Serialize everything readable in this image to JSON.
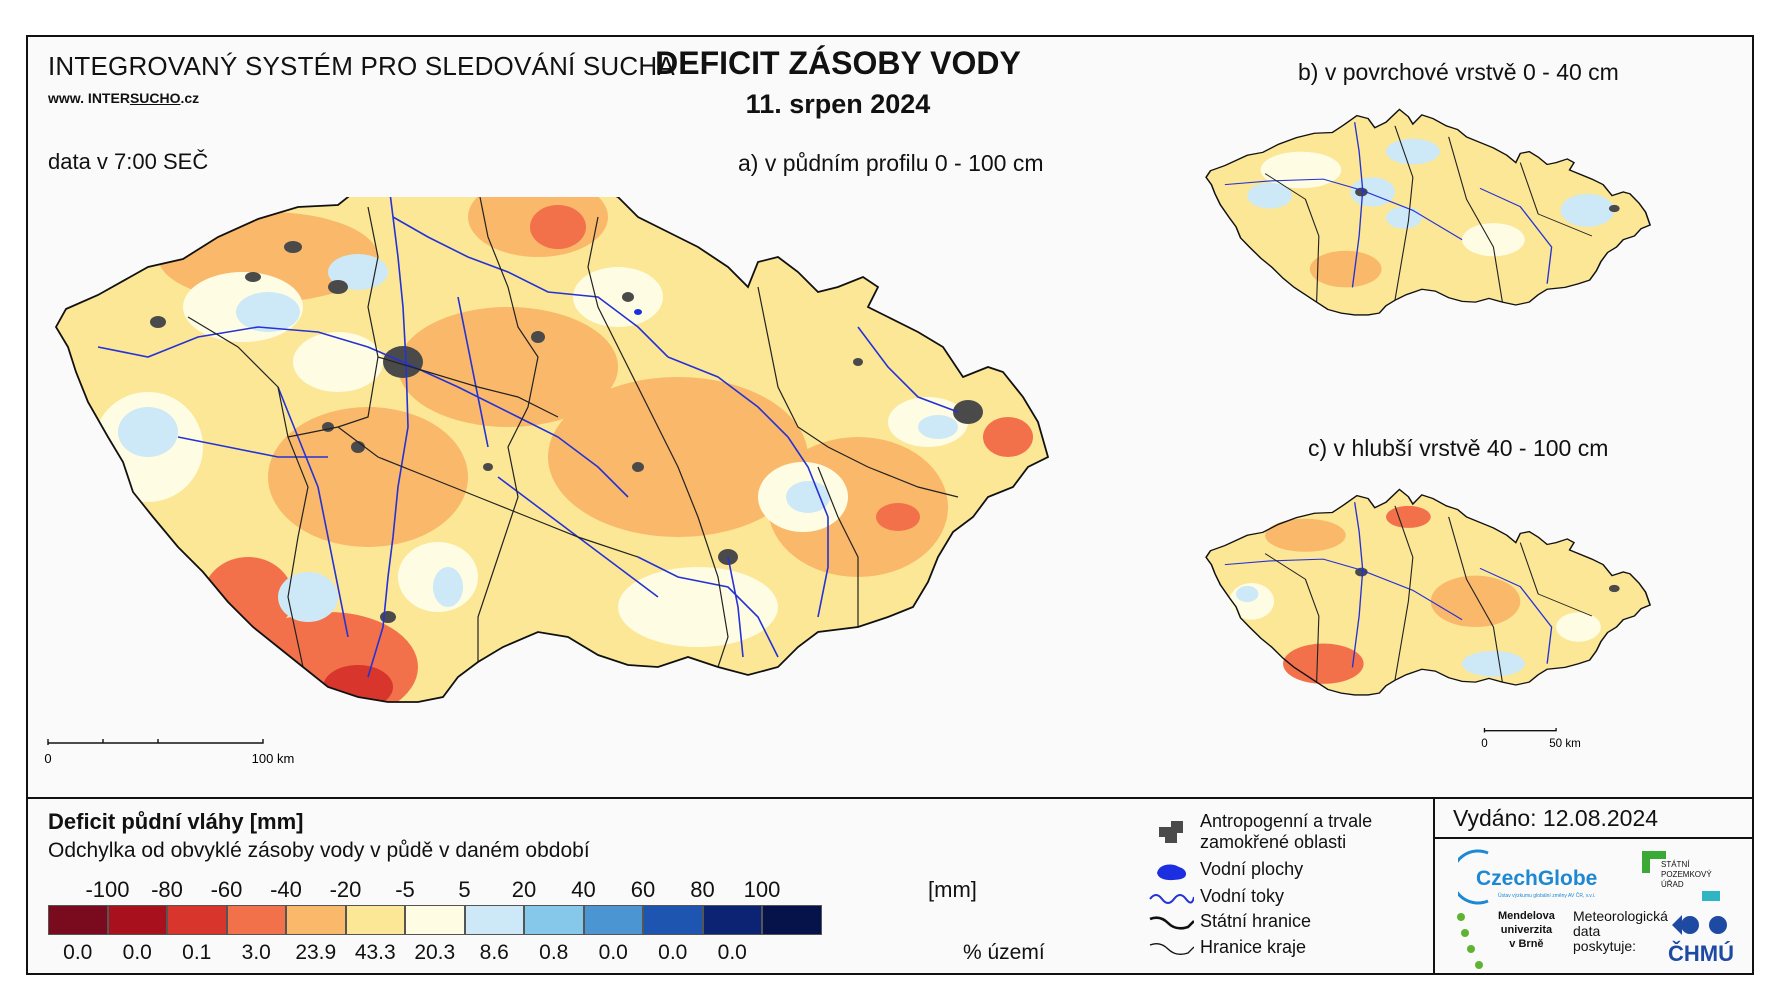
{
  "header": {
    "system_title": "INTEGROVANÝ SYSTÉM PRO SLEDOVÁNÍ SUCHA",
    "website_prefix": "www. INTER",
    "website_brand": "SUCHO",
    "website_suffix": ".cz",
    "data_time": "data v 7:00 SEČ",
    "main_title": "DEFICIT ZÁSOBY VODY",
    "main_date": "11. srpen 2024"
  },
  "maps": {
    "main_label": "a) v půdním profilu 0 - 100 cm",
    "b_label": "b) v povrchové vrstvě 0 - 40 cm",
    "c_label": "c) v hlubší vrstvě 40 - 100 cm",
    "main_scale_start": "0",
    "main_scale_end": "100 km",
    "small_scale_start": "0",
    "small_scale_end": "50 km"
  },
  "legend": {
    "title": "Deficit půdní vláhy  [mm]",
    "subtitle": "Odchylka od obvyklé zásoby vody v půdě v daném období",
    "ticks": [
      "-100",
      "-80",
      "-60",
      "-40",
      "-20",
      "-5",
      "5",
      "20",
      "40",
      "60",
      "80",
      "100"
    ],
    "unit_mm": "[mm]",
    "classes": [
      {
        "color": "#7a0a1e",
        "pct": "0.0"
      },
      {
        "color": "#a8101e",
        "pct": "0.0"
      },
      {
        "color": "#d8362c",
        "pct": "0.1"
      },
      {
        "color": "#f2714a",
        "pct": "3.0"
      },
      {
        "color": "#f9b86a",
        "pct": "23.9"
      },
      {
        "color": "#fbe796",
        "pct": "43.3"
      },
      {
        "color": "#fefde4",
        "pct": "20.3"
      },
      {
        "color": "#cde8f6",
        "pct": "8.6"
      },
      {
        "color": "#86c8ea",
        "pct": "0.8"
      },
      {
        "color": "#4a95d2",
        "pct": "0.0"
      },
      {
        "color": "#1e55b0",
        "pct": "0.0"
      },
      {
        "color": "#0b2372",
        "pct": "0.0"
      },
      {
        "color": "#06124a",
        "pct": ""
      }
    ],
    "unit_pct": "% území",
    "symbols": {
      "urban": "Antropogenní a trvale\nzamokřené oblasti",
      "water_bodies": "Vodní plochy",
      "rivers": "Vodní toky",
      "state_border": "Státní hranice",
      "region_border": "Hranice kraje"
    }
  },
  "footer": {
    "issued": "Vydáno: 12.08.2024",
    "logo_czechglobe": "CzechGlobe",
    "logo_spu": "STÁTNÍ\nPOZEMKOVÝ\nÚŘAD",
    "logo_mendelu": "Mendelova\nuniverzita\nv Brně",
    "provider_text": "Meteorologická\ndata\nposkytuje:",
    "logo_chmu": "ČHMÚ"
  },
  "colors": {
    "river": "#2432d6",
    "urban": "#4a4a4a",
    "border": "#111111"
  }
}
